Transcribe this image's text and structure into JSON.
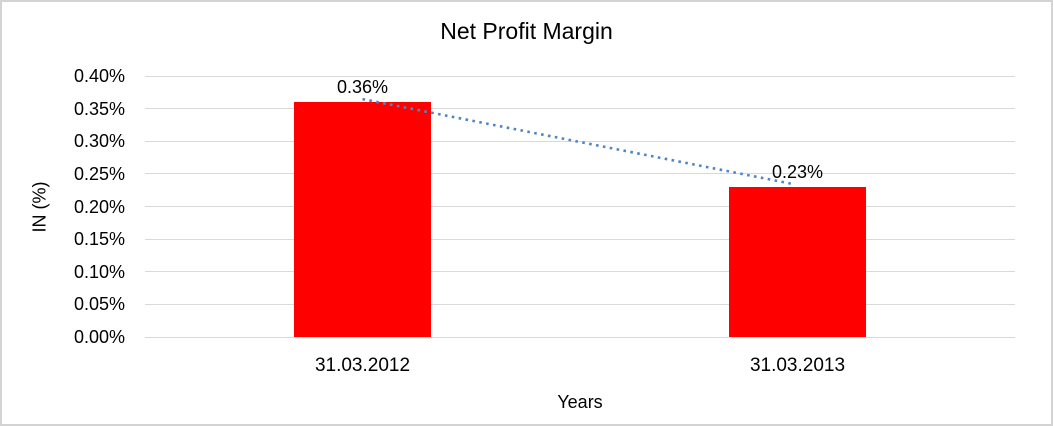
{
  "chart_data": {
    "type": "bar",
    "title": "Net Profit Margin",
    "xlabel": "Years",
    "ylabel": "IN (%)",
    "categories": [
      "31.03.2012",
      "31.03.2013"
    ],
    "series": [
      {
        "name": "Net Profit Margin",
        "values": [
          0.36,
          0.23
        ],
        "data_labels": [
          "0.36%",
          "0.23%"
        ],
        "color": "#ff0000"
      }
    ],
    "trendline": {
      "style": "dotted",
      "color": "#4e86c5",
      "from": 0.36,
      "to": 0.23
    },
    "ylim": [
      0,
      0.4
    ],
    "ytick_step": 0.05,
    "ytick_labels": [
      "0.40%",
      "0.35%",
      "0.30%",
      "0.25%",
      "0.20%",
      "0.15%",
      "0.10%",
      "0.05%",
      "0.00%"
    ],
    "grid": true,
    "legend": false,
    "colors": {
      "bar": "#ff0000",
      "trendline": "#4e86c5",
      "gridline": "#d9d9d9",
      "text": "#000000",
      "background": "#ffffff",
      "border": "#d3d3d3"
    }
  }
}
